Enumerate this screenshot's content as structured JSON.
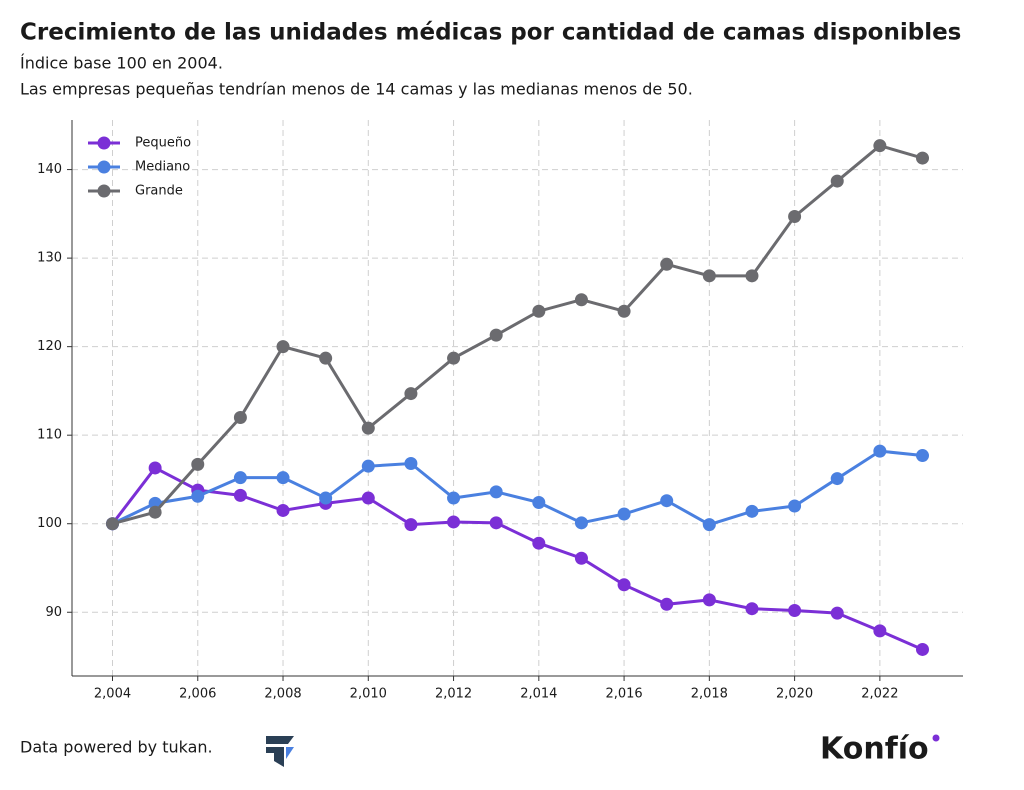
{
  "chart_data": {
    "type": "line",
    "title": "Crecimiento de las unidades médicas por cantidad de camas disponibles",
    "subtitle": [
      "Índice base 100 en 2004.",
      "Las empresas pequeñas tendrían menos de 14 camas y las medianas menos de 50."
    ],
    "x": [
      2004,
      2005,
      2006,
      2007,
      2008,
      2009,
      2010,
      2011,
      2012,
      2013,
      2014,
      2015,
      2016,
      2017,
      2018,
      2019,
      2020,
      2021,
      2022,
      2023
    ],
    "series": [
      {
        "name": "Pequeño",
        "color": "#7b2fd6",
        "values": [
          100,
          106.3,
          103.8,
          103.2,
          101.5,
          102.3,
          102.9,
          99.9,
          100.2,
          100.1,
          97.8,
          96.1,
          93.1,
          90.9,
          91.4,
          90.4,
          90.2,
          89.9,
          87.9,
          85.8
        ]
      },
      {
        "name": "Mediano",
        "color": "#4a80e0",
        "values": [
          100,
          102.3,
          103.1,
          105.2,
          105.2,
          102.9,
          106.5,
          106.8,
          102.9,
          103.6,
          102.4,
          100.1,
          101.1,
          102.6,
          99.9,
          101.4,
          102,
          105.1,
          108.2,
          107.7
        ]
      },
      {
        "name": "Grande",
        "color": "#6b6b6f",
        "values": [
          100,
          101.3,
          106.7,
          112,
          120,
          118.7,
          110.8,
          114.7,
          118.7,
          121.3,
          124,
          125.3,
          124,
          129.3,
          128,
          128,
          134.7,
          138.7,
          142.7,
          141.3
        ]
      }
    ],
    "xlim": [
      2003.05,
      2023.95
    ],
    "xticks": [
      {
        "value": 2004,
        "label": "2,004"
      },
      {
        "value": 2006,
        "label": "2,006"
      },
      {
        "value": 2008,
        "label": "2,008"
      },
      {
        "value": 2010,
        "label": "2,010"
      },
      {
        "value": 2012,
        "label": "2,012"
      },
      {
        "value": 2014,
        "label": "2,014"
      },
      {
        "value": 2016,
        "label": "2,016"
      },
      {
        "value": 2018,
        "label": "2,018"
      },
      {
        "value": 2020,
        "label": "2,020"
      },
      {
        "value": 2022,
        "label": "2,022"
      }
    ],
    "ylim": [
      82.8,
      145.6
    ],
    "yticks": [
      90,
      100,
      110,
      120,
      130,
      140
    ],
    "grid": true,
    "legend": "upper-left"
  },
  "footer": {
    "source": "Data powered by tukan.",
    "brand": "Konfío"
  }
}
